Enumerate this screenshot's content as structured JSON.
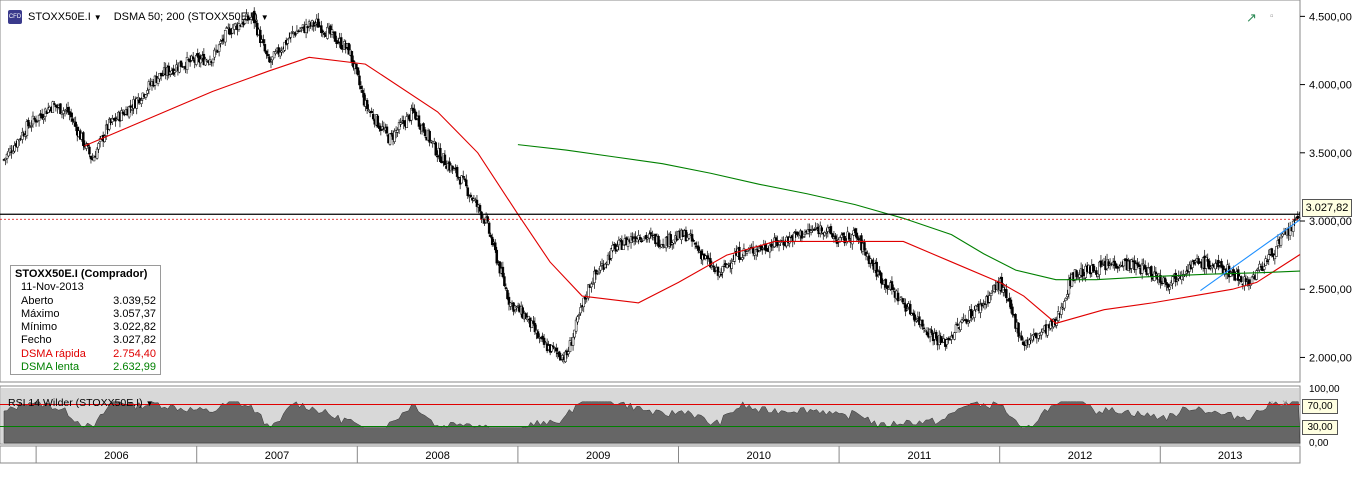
{
  "toolbar": {
    "symbol_icon": "cfd-icon",
    "symbol": "STOXX50E.I",
    "indicator": "DSMA 50; 200 (STOXX50E.I)"
  },
  "info": {
    "title": "STOXX50E.I (Comprador)",
    "date": "11-Nov-2013",
    "rows": [
      {
        "label": "Aberto",
        "value": "3.039,52"
      },
      {
        "label": "Máximo",
        "value": "3.057,37"
      },
      {
        "label": "Mínimo",
        "value": "3.022,82"
      },
      {
        "label": "Fecho",
        "value": "3.027,82"
      },
      {
        "label": "DSMA rápida",
        "value": "2.754,40"
      },
      {
        "label": "DSMA lenta",
        "value": "2.632,99"
      }
    ]
  },
  "rsi": {
    "label": "RSI 14 Wilder (STOXX50E.I)",
    "overbought_label": "70,00",
    "oversold_label": "30,00",
    "axis_labels": [
      "100,00",
      "0,00"
    ]
  },
  "colors": {
    "candle": "#000000",
    "fast_ma": "#e00000",
    "slow_ma": "#008000",
    "trendline": "#1e90ff",
    "rsi_fill": "#666666",
    "rsi_bg": "#d8d8d8"
  },
  "chart_data": {
    "type": "line",
    "series_kind": "candlestick",
    "symbol": "STOXX50E.I",
    "x_labels": [
      "2006",
      "2007",
      "2008",
      "2009",
      "2010",
      "2011",
      "2012",
      "2013"
    ],
    "y_tick_labels": [
      "4.500,00",
      "4.000,00",
      "3.500,00",
      "3.000,00",
      "2.500,00",
      "2.000,00"
    ],
    "y_ticks": [
      4500,
      4000,
      3500,
      3000,
      2500,
      2000
    ],
    "ylim": [
      1820,
      4620
    ],
    "last_price": 3027.82,
    "last_price_label": "3.027,82",
    "horizontal_level": 3027.82,
    "close_path": {
      "x": [
        2005.8,
        2005.95,
        2006.1,
        2006.2,
        2006.35,
        2006.45,
        2006.6,
        2006.75,
        2006.9,
        2007.1,
        2007.2,
        2007.35,
        2007.45,
        2007.6,
        2007.75,
        2007.95,
        2008.05,
        2008.2,
        2008.35,
        2008.5,
        2008.65,
        2008.8,
        2008.95,
        2009.05,
        2009.15,
        2009.3,
        2009.45,
        2009.6,
        2009.75,
        2009.9,
        2010.05,
        2010.25,
        2010.35,
        2010.5,
        2010.65,
        2010.75,
        2010.9,
        2011.0,
        2011.1,
        2011.25,
        2011.4,
        2011.55,
        2011.65,
        2011.8,
        2011.9,
        2012.0,
        2012.15,
        2012.35,
        2012.45,
        2012.6,
        2012.75,
        2012.9,
        2013.05,
        2013.15,
        2013.25,
        2013.4,
        2013.55,
        2013.62,
        2013.75,
        2013.87
      ],
      "y": [
        3450,
        3700,
        3850,
        3800,
        3450,
        3700,
        3850,
        4050,
        4150,
        4200,
        4400,
        4500,
        4150,
        4380,
        4450,
        4250,
        3850,
        3600,
        3800,
        3500,
        3300,
        3000,
        2400,
        2300,
        2100,
        2000,
        2550,
        2800,
        2900,
        2850,
        2900,
        2600,
        2750,
        2800,
        2850,
        2900,
        2950,
        2850,
        2900,
        2600,
        2400,
        2200,
        2100,
        2300,
        2400,
        2550,
        2100,
        2250,
        2600,
        2650,
        2700,
        2650,
        2550,
        2650,
        2700,
        2650,
        2550,
        2650,
        2850,
        3027.82
      ]
    },
    "fast_ma": {
      "name": "DSMA rápida",
      "x": [
        2006.3,
        2006.9,
        2007.1,
        2007.45,
        2007.7,
        2008.05,
        2008.5,
        2008.75,
        2009.0,
        2009.2,
        2009.4,
        2009.75,
        2010.0,
        2010.3,
        2010.6,
        2010.9,
        2011.15,
        2011.4,
        2011.7,
        2012.0,
        2012.15,
        2012.35,
        2012.65,
        2012.95,
        2013.2,
        2013.45,
        2013.6,
        2013.87
      ],
      "y": [
        3550,
        3850,
        3950,
        4100,
        4200,
        4150,
        3800,
        3500,
        3050,
        2700,
        2450,
        2400,
        2550,
        2750,
        2850,
        2850,
        2850,
        2850,
        2700,
        2550,
        2450,
        2250,
        2350,
        2400,
        2450,
        2500,
        2550,
        2754.4
      ]
    },
    "slow_ma": {
      "name": "DSMA lenta",
      "x": [
        2009.0,
        2009.3,
        2009.6,
        2009.9,
        2010.2,
        2010.5,
        2010.8,
        2011.1,
        2011.4,
        2011.7,
        2011.9,
        2012.1,
        2012.35,
        2012.6,
        2012.9,
        2013.3,
        2013.6,
        2013.87
      ],
      "y": [
        3560,
        3520,
        3470,
        3420,
        3350,
        3270,
        3200,
        3120,
        3020,
        2900,
        2760,
        2640,
        2570,
        2570,
        2590,
        2610,
        2620,
        2632.99
      ]
    },
    "trendline": {
      "x": [
        2013.25,
        2013.87
      ],
      "y": [
        2490,
        3010
      ]
    },
    "ohlc_last": {
      "open": 3039.52,
      "high": 3057.37,
      "low": 3022.82,
      "close": 3027.82
    },
    "rsi": {
      "period": 14,
      "ylim": [
        0,
        100
      ],
      "levels": [
        70,
        30
      ]
    }
  }
}
